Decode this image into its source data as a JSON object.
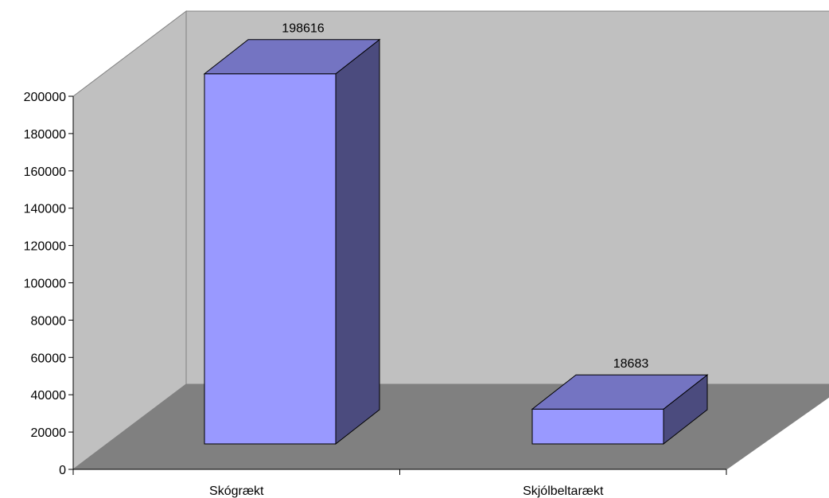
{
  "chart_data": {
    "type": "bar",
    "three_d": true,
    "categories": [
      "Skógrækt",
      "Skjólbeltarækt"
    ],
    "values": [
      198616,
      18683
    ],
    "data_labels": [
      "198616",
      "18683"
    ],
    "title": "",
    "xlabel": "",
    "ylabel": "",
    "ylim": [
      0,
      200000
    ],
    "yticks": [
      "0",
      "20000",
      "40000",
      "60000",
      "80000",
      "100000",
      "120000",
      "140000",
      "160000",
      "180000",
      "200000"
    ],
    "grid": false,
    "legend": "none",
    "colors": {
      "bar_front": "#9999ff",
      "bar_top": "#7474c2",
      "bar_side": "#4b4b7e",
      "back_wall": "#c0c0c0",
      "side_wall": "#c0c0c0",
      "floor": "#808080",
      "outline": "#000000",
      "wall_border": "#808080"
    }
  }
}
